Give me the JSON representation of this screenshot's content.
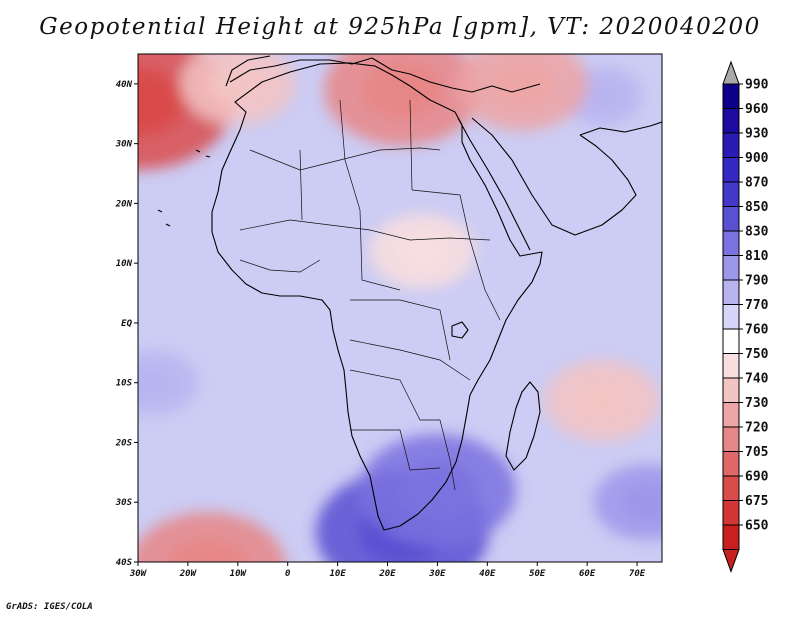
{
  "title": "Geopotential Height at 925hPa [gpm], VT: 2020040200",
  "credit": "GrADS: IGES/COLA",
  "map": {
    "region": "Africa",
    "variable": "Geopotential Height",
    "level": "925hPa",
    "units": "gpm",
    "valid_time": "2020040200",
    "lon_range": [
      -30,
      75
    ],
    "lat_range": [
      -40,
      45
    ],
    "lon_ticks": [
      {
        "lon": -30,
        "label": "30W"
      },
      {
        "lon": -20,
        "label": "20W"
      },
      {
        "lon": -10,
        "label": "10W"
      },
      {
        "lon": 0,
        "label": "0"
      },
      {
        "lon": 10,
        "label": "10E"
      },
      {
        "lon": 20,
        "label": "20E"
      },
      {
        "lon": 30,
        "label": "30E"
      },
      {
        "lon": 40,
        "label": "40E"
      },
      {
        "lon": 50,
        "label": "50E"
      },
      {
        "lon": 60,
        "label": "60E"
      },
      {
        "lon": 70,
        "label": "70E"
      }
    ],
    "lat_ticks": [
      {
        "lat": 40,
        "label": "40N"
      },
      {
        "lat": 30,
        "label": "30N"
      },
      {
        "lat": 20,
        "label": "20N"
      },
      {
        "lat": 10,
        "label": "10N"
      },
      {
        "lat": 0,
        "label": "EQ"
      },
      {
        "lat": -10,
        "label": "10S"
      },
      {
        "lat": -20,
        "label": "20S"
      },
      {
        "lat": -30,
        "label": "30S"
      },
      {
        "lat": -40,
        "label": "40S"
      }
    ],
    "features": [
      {
        "name": "high-south-atlantic",
        "lon": 23,
        "lat": -35,
        "value": 850
      },
      {
        "name": "high-south-africa",
        "lon": 30,
        "lat": -28,
        "value": 840
      },
      {
        "name": "high-indian-ocean-south",
        "lon": 72,
        "lat": -30,
        "value": 810
      },
      {
        "name": "high-atlantic-west",
        "lon": -27,
        "lat": -10,
        "value": 800
      },
      {
        "name": "high-middle-east",
        "lon": 63,
        "lat": 38,
        "value": 795
      },
      {
        "name": "low-sahel",
        "lon": 27,
        "lat": 12,
        "value": 750
      },
      {
        "name": "low-madagascar-east",
        "lon": 63,
        "lat": -13,
        "value": 745
      },
      {
        "name": "low-atlantic-nw",
        "lon": -30,
        "lat": 37,
        "value": 700
      },
      {
        "name": "low-greece",
        "lon": 23,
        "lat": 39,
        "value": 720
      },
      {
        "name": "low-turkey",
        "lon": 47,
        "lat": 40,
        "value": 735
      },
      {
        "name": "low-southwest-atlantic",
        "lon": -16,
        "lat": -41,
        "value": 720
      },
      {
        "name": "low-iberia",
        "lon": -10,
        "lat": 40,
        "value": 745
      }
    ]
  },
  "colorbar": {
    "levels": [
      {
        "label": "990",
        "color": "#0b0087"
      },
      {
        "label": "960",
        "color": "#1d0aa0"
      },
      {
        "label": "930",
        "color": "#2a1bb5"
      },
      {
        "label": "900",
        "color": "#3628c2"
      },
      {
        "label": "870",
        "color": "#4438c8"
      },
      {
        "label": "850",
        "color": "#5a50d2"
      },
      {
        "label": "830",
        "color": "#7a72df"
      },
      {
        "label": "810",
        "color": "#9d97ea"
      },
      {
        "label": "790",
        "color": "#b8b4f0"
      },
      {
        "label": "770",
        "color": "#d8d6f8"
      },
      {
        "label": "760",
        "color": "#ffffff"
      },
      {
        "label": "750",
        "color": "#f8dede"
      },
      {
        "label": "740",
        "color": "#f3c4c4"
      },
      {
        "label": "730",
        "color": "#eda5a5"
      },
      {
        "label": "720",
        "color": "#e78686"
      },
      {
        "label": "705",
        "color": "#e06868"
      },
      {
        "label": "690",
        "color": "#d94c4c"
      },
      {
        "label": "675",
        "color": "#d23636"
      },
      {
        "label": "650",
        "color": "#c81f1f"
      }
    ],
    "over_color": "#aaaaaa",
    "under_color": "#c81f1f"
  }
}
